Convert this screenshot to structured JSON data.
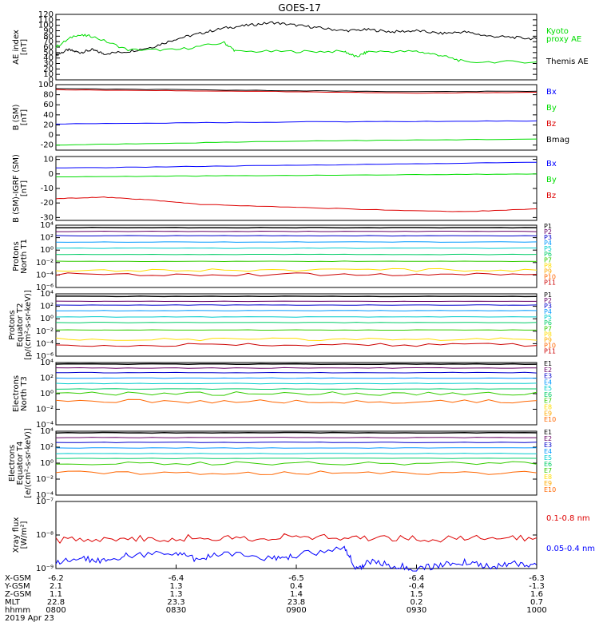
{
  "title": "GOES-17",
  "colors": {
    "black": "#000000",
    "green": "#00dd00",
    "blue": "#0000ff",
    "red": "#dd0000",
    "P": [
      "#000000",
      "#660066",
      "#0000cc",
      "#0099ff",
      "#00cccc",
      "#00cc66",
      "#33cc00",
      "#ffdd00",
      "#ffaa00",
      "#ff6600",
      "#cc0000"
    ],
    "E": [
      "#000000",
      "#660066",
      "#0000cc",
      "#0099ff",
      "#00cccc",
      "#00cc66",
      "#33cc00",
      "#ffdd00",
      "#ffaa00",
      "#ff6600",
      "#cc0000"
    ]
  },
  "chart_data": [
    {
      "type": "line",
      "id": "ae",
      "ylabel": [
        "AE index",
        "[nT]"
      ],
      "ylim": [
        0,
        120
      ],
      "yticks": [
        "0",
        "10",
        "20",
        "30",
        "40",
        "50",
        "60",
        "70",
        "80",
        "90",
        "100",
        "110",
        "120"
      ],
      "legend": [
        {
          "text": "Kyoto",
          "color": "green"
        },
        {
          "text": "proxy AE",
          "color": "green"
        },
        {
          "text": "Themis AE",
          "color": "black"
        }
      ],
      "series": [
        {
          "color": "black",
          "x": [
            0,
            0.05,
            0.1,
            0.15,
            0.2,
            0.3,
            0.4,
            0.5,
            0.6,
            0.7,
            0.8,
            0.9,
            1.0,
            1.1,
            1.2,
            1.3,
            1.4,
            1.5,
            1.6,
            1.7,
            1.8,
            1.9,
            2.0
          ],
          "y": [
            45,
            55,
            50,
            55,
            48,
            52,
            60,
            75,
            85,
            95,
            100,
            105,
            100,
            95,
            90,
            92,
            88,
            90,
            85,
            88,
            80,
            78,
            75
          ]
        },
        {
          "color": "green",
          "x": [
            0,
            0.08,
            0.15,
            0.3,
            0.5,
            0.7,
            0.75,
            1.0,
            1.2,
            1.25,
            1.3,
            1.5,
            1.6,
            1.7,
            2.0
          ],
          "y": [
            60,
            82,
            80,
            55,
            55,
            68,
            52,
            52,
            52,
            42,
            52,
            52,
            45,
            33,
            33
          ]
        }
      ]
    },
    {
      "type": "line",
      "id": "bsm",
      "ylabel": [
        "B (SM)",
        "[nT]"
      ],
      "ylim": [
        -30,
        100
      ],
      "yticks": [
        "-20",
        "0",
        "20",
        "40",
        "60",
        "80",
        "100"
      ],
      "ytickvals": [
        -20,
        0,
        20,
        40,
        60,
        80,
        100
      ],
      "legend": [
        {
          "text": "Bx",
          "color": "blue"
        },
        {
          "text": "By",
          "color": "green"
        },
        {
          "text": "Bz",
          "color": "red"
        },
        {
          "text": "Bmag",
          "color": "black"
        }
      ],
      "series": [
        {
          "color": "red",
          "x": [
            0,
            0.5,
            1,
            1.5,
            2
          ],
          "y": [
            90,
            88,
            86,
            83,
            85
          ]
        },
        {
          "color": "black",
          "x": [
            0,
            0.5,
            1,
            1.5,
            2
          ],
          "y": [
            92,
            90,
            88,
            86,
            87
          ]
        },
        {
          "color": "blue",
          "x": [
            0,
            0.5,
            1,
            1.5,
            2
          ],
          "y": [
            22,
            24,
            26,
            27,
            28
          ]
        },
        {
          "color": "green",
          "x": [
            0,
            0.5,
            1,
            1.5,
            2
          ],
          "y": [
            -20,
            -16,
            -12,
            -10,
            -8
          ]
        }
      ]
    },
    {
      "type": "line",
      "id": "bigrf",
      "ylabel": [
        "B (SM)-IGRF (SM)",
        "[nT]"
      ],
      "ylim": [
        -32,
        12
      ],
      "yticks": [
        "-30",
        "-20",
        "-10",
        "0",
        "10"
      ],
      "ytickvals": [
        -30,
        -20,
        -10,
        0,
        10
      ],
      "legend": [
        {
          "text": "Bx",
          "color": "blue"
        },
        {
          "text": "By",
          "color": "green"
        },
        {
          "text": "Bz",
          "color": "red"
        }
      ],
      "series": [
        {
          "color": "blue",
          "x": [
            0,
            0.5,
            1,
            1.5,
            2
          ],
          "y": [
            4,
            5,
            6,
            7,
            8
          ]
        },
        {
          "color": "green",
          "x": [
            0,
            0.5,
            1,
            1.5,
            2
          ],
          "y": [
            -2,
            -1.5,
            -1,
            -0.5,
            0
          ]
        },
        {
          "color": "red",
          "x": [
            0,
            0.2,
            0.4,
            0.6,
            1.0,
            1.4,
            1.7,
            2.0
          ],
          "y": [
            -17,
            -16,
            -18,
            -21,
            -23,
            -25,
            -26,
            -24
          ]
        }
      ]
    },
    {
      "type": "line",
      "id": "pn",
      "log": true,
      "ylabel": [
        "Protons",
        "North T1"
      ],
      "ylim": [
        -6,
        4
      ],
      "yticks": [
        "10⁴",
        "10²",
        "10⁰",
        "10⁻²",
        "10⁻⁴",
        "10⁻⁶"
      ],
      "ytickvals": [
        4,
        2,
        0,
        -2,
        -4,
        -6
      ],
      "legend": [
        {
          "text": "P1"
        },
        {
          "text": "P2"
        },
        {
          "text": "P3"
        },
        {
          "text": "P4"
        },
        {
          "text": "P5"
        },
        {
          "text": "P6"
        },
        {
          "text": "P7"
        },
        {
          "text": "P8"
        },
        {
          "text": "P9"
        },
        {
          "text": "P10"
        },
        {
          "text": "P11"
        }
      ],
      "legendColor": "P",
      "levels": [
        3.6,
        3.0,
        2.3,
        1.3,
        0.3,
        -0.7,
        -1.8,
        -3.2,
        -3.9
      ]
    },
    {
      "type": "line",
      "id": "pe",
      "log": true,
      "ylabel": [
        "Protons",
        "Equator T2",
        "[p/(cm²-s-sr-keV)]"
      ],
      "ylim": [
        -6,
        4
      ],
      "yticks": [
        "10⁴",
        "10²",
        "10⁰",
        "10⁻²",
        "10⁻⁴",
        "10⁻⁶"
      ],
      "ytickvals": [
        4,
        2,
        0,
        -2,
        -4,
        -6
      ],
      "legend": [
        {
          "text": "P1"
        },
        {
          "text": "P2"
        },
        {
          "text": "P3"
        },
        {
          "text": "P4"
        },
        {
          "text": "P5"
        },
        {
          "text": "P6"
        },
        {
          "text": "P7"
        },
        {
          "text": "P8"
        },
        {
          "text": "P9"
        },
        {
          "text": "P10"
        },
        {
          "text": "P11"
        }
      ],
      "legendColor": "P",
      "levels": [
        3.6,
        2.8,
        2.2,
        1.3,
        0.3,
        -0.6,
        -1.8,
        -3.3,
        -4.2
      ]
    },
    {
      "type": "line",
      "id": "en",
      "log": true,
      "ylabel": [
        "Electrons",
        "North T3"
      ],
      "ylim": [
        -4,
        4
      ],
      "yticks": [
        "10⁴",
        "10²",
        "10⁰",
        "10⁻²",
        "10⁻⁴"
      ],
      "ytickvals": [
        4,
        2,
        0,
        -2,
        -4
      ],
      "legend": [
        {
          "text": "E1"
        },
        {
          "text": "E2"
        },
        {
          "text": "E3"
        },
        {
          "text": "E4"
        },
        {
          "text": "E5"
        },
        {
          "text": "E6"
        },
        {
          "text": "E7"
        },
        {
          "text": "E8"
        },
        {
          "text": "E9"
        },
        {
          "text": "E10"
        }
      ],
      "legendColor": "E",
      "levels": [
        3.8,
        3.3,
        2.7,
        2.0,
        1.3,
        0.6,
        0.0,
        -1.0
      ]
    },
    {
      "type": "line",
      "id": "ee",
      "log": true,
      "ylabel": [
        "Electrons",
        "Equator T4",
        "[e/(cm²-s-sr-keV)]"
      ],
      "ylim": [
        -4,
        4
      ],
      "yticks": [
        "10⁴",
        "10²",
        "10⁰",
        "10⁻²",
        "10⁻⁴"
      ],
      "ytickvals": [
        4,
        2,
        0,
        -2,
        -4
      ],
      "legend": [
        {
          "text": "E1"
        },
        {
          "text": "E2"
        },
        {
          "text": "E3"
        },
        {
          "text": "E4"
        },
        {
          "text": "E5"
        },
        {
          "text": "E6"
        },
        {
          "text": "E7"
        },
        {
          "text": "E8"
        },
        {
          "text": "E9"
        },
        {
          "text": "E10"
        }
      ],
      "legendColor": "E",
      "levels": [
        3.8,
        3.2,
        2.6,
        1.9,
        1.2,
        0.6,
        0.0,
        -1.2
      ]
    },
    {
      "type": "line",
      "id": "xray",
      "log": true,
      "ylabel": [
        "Xray flux",
        "[W/m²]"
      ],
      "ylim": [
        -9,
        -7
      ],
      "yticks": [
        "10⁻⁷",
        "10⁻⁸",
        "10⁻⁹"
      ],
      "ytickvals": [
        -7,
        -8,
        -9
      ],
      "legend": [
        {
          "text": "0.1-0.8 nm",
          "color": "red"
        },
        {
          "text": "0.05-0.4 nm",
          "color": "blue"
        }
      ],
      "series": [
        {
          "color": "red",
          "x": [
            0,
            0.2,
            0.4,
            0.6,
            0.8,
            1.0,
            1.2,
            1.4,
            1.6,
            1.8,
            2.0
          ],
          "y": [
            -8.15,
            -8.1,
            -8.12,
            -8.08,
            -8.1,
            -8.05,
            -8.1,
            -8.08,
            -8.12,
            -8.1,
            -8.08
          ]
        },
        {
          "color": "blue",
          "x": [
            0,
            0.1,
            0.2,
            0.3,
            0.5,
            0.6,
            0.7,
            0.9,
            1.0,
            1.2,
            1.25,
            1.3,
            1.4,
            1.5,
            1.6,
            1.7,
            1.8,
            1.9,
            2.0
          ],
          "y": [
            -8.85,
            -8.7,
            -8.75,
            -8.6,
            -8.55,
            -8.75,
            -8.5,
            -8.7,
            -8.6,
            -8.4,
            -9.0,
            -8.8,
            -8.9,
            -9.0,
            -8.9,
            -8.8,
            -8.95,
            -8.85,
            -8.9
          ]
        }
      ]
    }
  ],
  "xaxis": {
    "rowLabels": [
      "X-GSM",
      "Y-GSM",
      "Z-GSM",
      "MLT",
      "hhmm",
      "2019 Apr 23"
    ],
    "ticks": [
      {
        "x": 0,
        "vals": [
          "-6.2",
          "2.1",
          "1.1",
          "22.8",
          "0800"
        ]
      },
      {
        "x": 0.5,
        "vals": [
          "-6.4",
          "1.3",
          "1.3",
          "23.3",
          "0830"
        ]
      },
      {
        "x": 1.0,
        "vals": [
          "-6.5",
          "0.4",
          "1.4",
          "23.8",
          "0900"
        ]
      },
      {
        "x": 1.5,
        "vals": [
          "-6.4",
          "-0.4",
          "1.5",
          "0.2",
          "0930"
        ]
      },
      {
        "x": 2.0,
        "vals": [
          "-6.3",
          "-1.3",
          "1.6",
          "0.7",
          "1000"
        ]
      }
    ]
  }
}
